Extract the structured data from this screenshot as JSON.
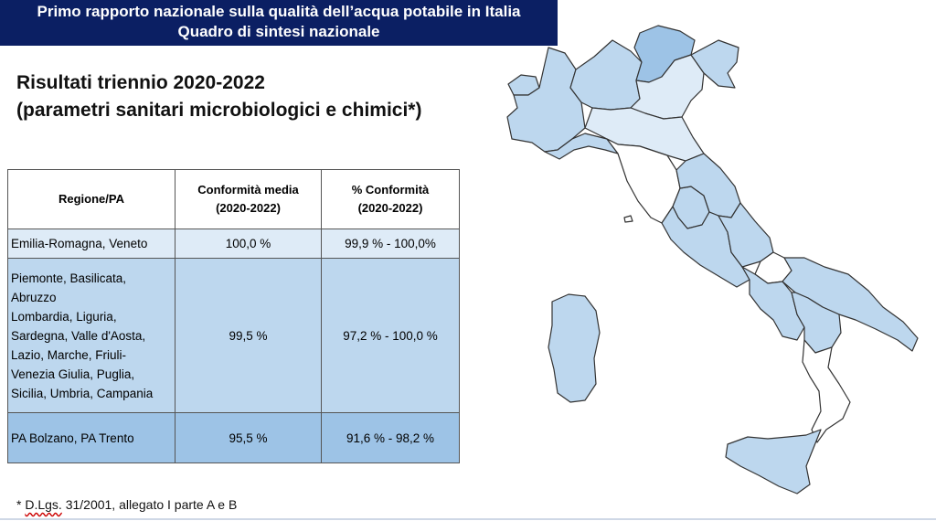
{
  "banner": {
    "line1": "Primo rapporto nazionale sulla qualità dell’acqua potabile in Italia",
    "line2": "Quadro di sintesi nazionale"
  },
  "heading": {
    "line1": "Risultati triennio 2020-2022",
    "line2": "(parametri sanitari microbiologici e chimici*)"
  },
  "table": {
    "headers": {
      "region": "Regione/PA",
      "mean_line1": "Conformità media",
      "mean_line2": "(2020-2022)",
      "pct_line1": "% Conformità",
      "pct_line2": "(2020-2022)"
    },
    "rows": [
      {
        "region_lines": [
          "Emilia-Romagna, Veneto"
        ],
        "mean": "100,0 %",
        "pct": "99,9 % - 100,0%",
        "color": "#deebf7"
      },
      {
        "region_lines": [
          "Piemonte, Basilicata,",
          "Abruzzo",
          "Lombardia, Liguria,",
          "Sardegna, Valle d'Aosta,",
          "Lazio, Marche, Friuli-",
          "Venezia Giulia, Puglia,",
          "Sicilia, Umbria, Campania"
        ],
        "mean": "99,5 %",
        "pct": "97,2 % - 100,0 %",
        "color": "#bdd7ee"
      },
      {
        "region_lines": [
          "PA Bolzano,  PA Trento"
        ],
        "mean": "95,5 %",
        "pct": "91,6 % - 98,2 %",
        "color": "#9dc3e6"
      }
    ]
  },
  "footnote": {
    "prefix": "* ",
    "ref": "D.Lgs.",
    "rest": " 31/2001, allegato I parte A e B"
  },
  "map_colors": {
    "light": "#deebf7",
    "medium": "#bdd7ee",
    "dark": "#9dc3e6",
    "none": "#ffffff",
    "border": "#333333"
  }
}
